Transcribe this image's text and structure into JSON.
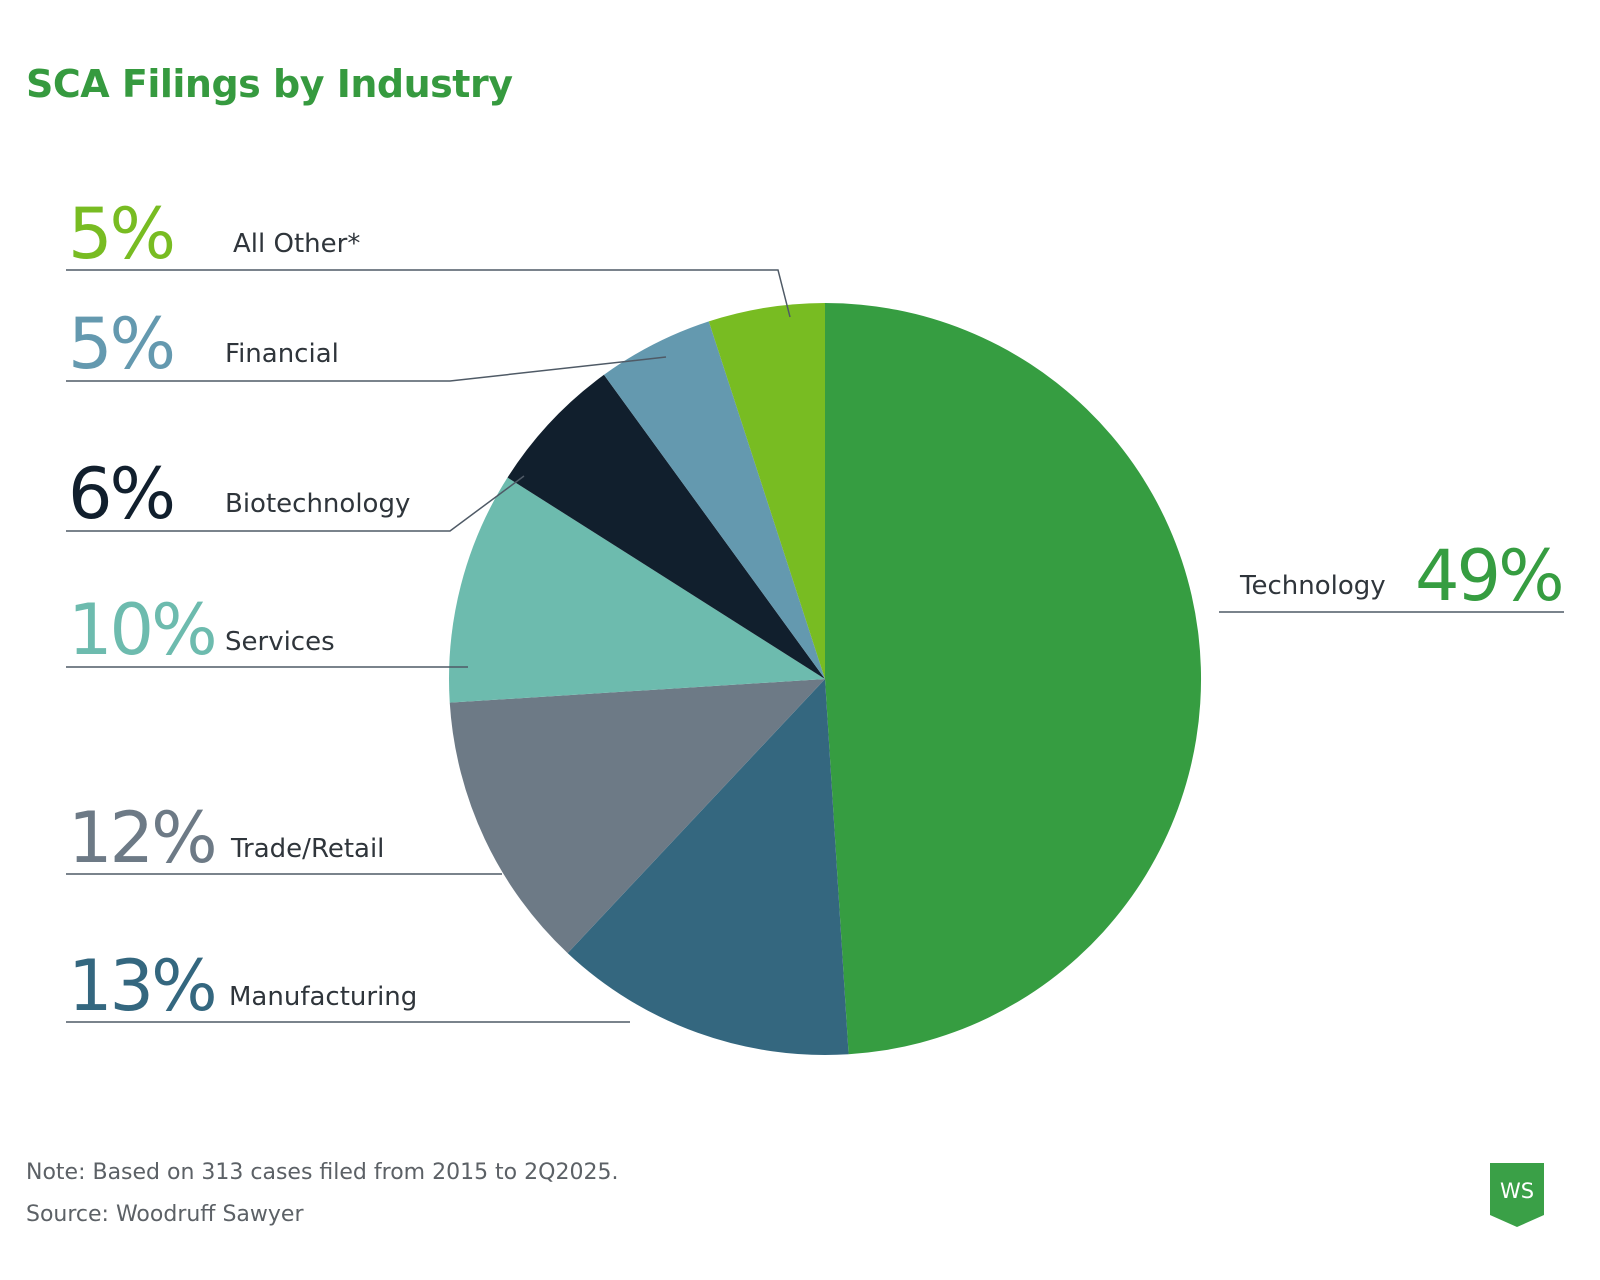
{
  "title": "SCA Filings by Industry",
  "colors": {
    "title": "#369a3f",
    "technology": "#369d41",
    "manufacturing": "#34677f",
    "trade_retail": "#6d7a86",
    "services": "#6dbbae",
    "biotechnology": "#111f2d",
    "financial": "#6499af",
    "all_other": "#78bc22",
    "logo": "#3aa047"
  },
  "chart_data": {
    "type": "pie",
    "title": "SCA Filings by Industry",
    "start": "12 o'clock",
    "direction": "clockwise",
    "slices": [
      {
        "key": "technology",
        "label": "Technology",
        "value": 49,
        "pct_label": "49%",
        "color": "#369d41"
      },
      {
        "key": "manufacturing",
        "label": "Manufacturing",
        "value": 13,
        "pct_label": "13%",
        "color": "#34677f"
      },
      {
        "key": "trade_retail",
        "label": "Trade/Retail",
        "value": 12,
        "pct_label": "12%",
        "color": "#6d7a86"
      },
      {
        "key": "services",
        "label": "Services",
        "value": 10,
        "pct_label": "10%",
        "color": "#6dbbae"
      },
      {
        "key": "biotechnology",
        "label": "Biotechnology",
        "value": 6,
        "pct_label": "6%",
        "color": "#111f2d"
      },
      {
        "key": "financial",
        "label": "Financial",
        "value": 5,
        "pct_label": "5%",
        "color": "#6499af"
      },
      {
        "key": "all_other",
        "label": "All Other*",
        "value": 5,
        "pct_label": "5%",
        "color": "#78bc22"
      }
    ]
  },
  "footer": {
    "note": "Note: Based on 313 cases filed from 2015 to 2Q2025.",
    "source": "Source: Woodruff Sawyer"
  },
  "logo": {
    "text": "WS"
  }
}
